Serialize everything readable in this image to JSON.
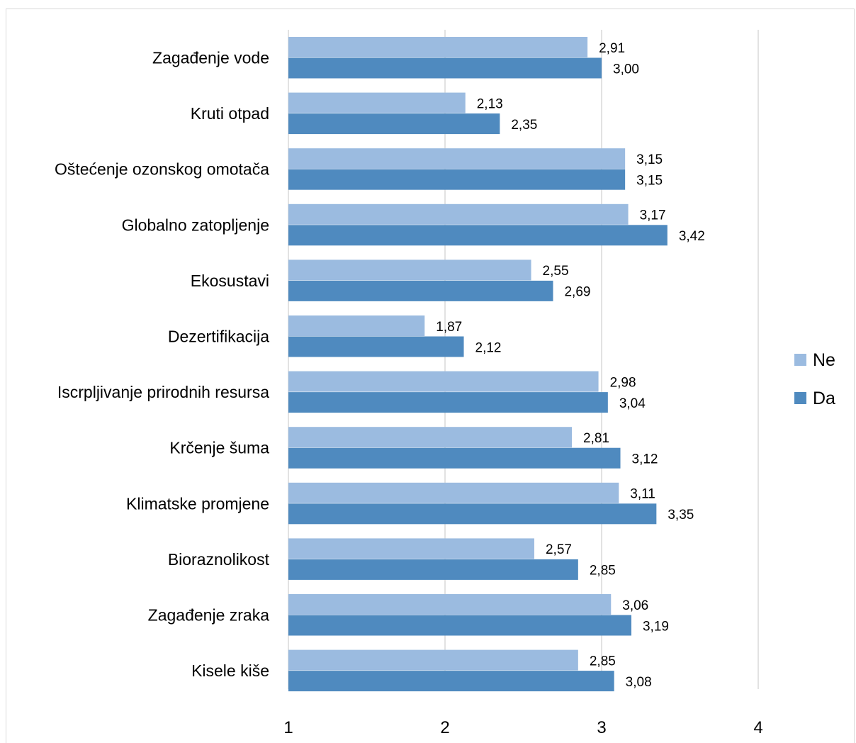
{
  "chart_data": {
    "type": "bar",
    "orientation": "horizontal",
    "categories": [
      "Zagađenje vode",
      "Kruti otpad",
      "Oštećenje ozonskog omotača",
      "Globalno zatopljenje",
      "Ekosustavi",
      "Dezertifikacija",
      "Iscrpljivanje prirodnih resursa",
      "Krčenje šuma",
      "Klimatske promjene",
      "Bioraznolikost",
      "Zagađenje zraka",
      "Kisele kiše"
    ],
    "series": [
      {
        "name": "Ne",
        "color": "#9bbbe0",
        "values": [
          2.91,
          2.13,
          3.15,
          3.17,
          2.55,
          1.87,
          2.98,
          2.81,
          3.11,
          2.57,
          3.06,
          2.85
        ],
        "labels": [
          "2,91",
          "2,13",
          "3,15",
          "3,17",
          "2,55",
          "1,87",
          "2,98",
          "2,81",
          "3,11",
          "2,57",
          "3,06",
          "2,85"
        ]
      },
      {
        "name": "Da",
        "color": "#4f8abf",
        "values": [
          3.0,
          2.35,
          3.15,
          3.42,
          2.69,
          2.12,
          3.04,
          3.12,
          3.35,
          2.85,
          3.19,
          3.08
        ],
        "labels": [
          "3,00",
          "2,35",
          "3,15",
          "3,42",
          "2,69",
          "2,12",
          "3,04",
          "3,12",
          "3,35",
          "2,85",
          "3,19",
          "3,08"
        ]
      }
    ],
    "xlim": [
      1,
      4
    ],
    "x_ticks": [
      1,
      2,
      3,
      4
    ],
    "x_tick_labels": [
      "1",
      "2",
      "3",
      "4"
    ],
    "grid": "vertical",
    "legend_position": "right",
    "legend_order": [
      "Ne",
      "Da"
    ],
    "title": "",
    "xlabel": "",
    "ylabel": ""
  }
}
